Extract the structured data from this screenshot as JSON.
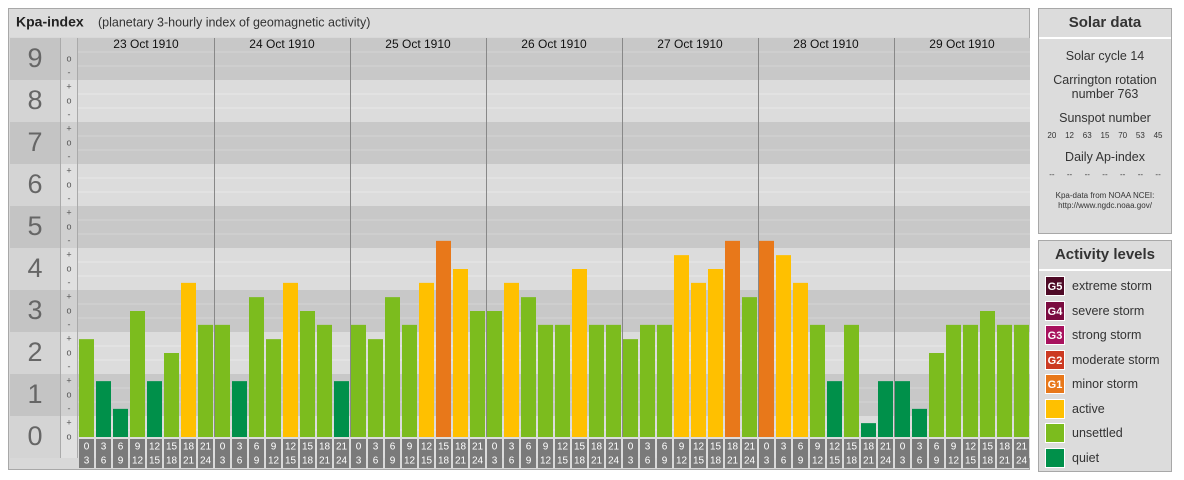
{
  "chart_data": {
    "type": "bar",
    "title": "Kpa-index",
    "subtitle": "(planetary 3-hourly index of geomagnetic activity)",
    "ylim": [
      -0.5,
      9.5
    ],
    "yticks": [
      0,
      1,
      2,
      3,
      4,
      5,
      6,
      7,
      8,
      9
    ],
    "minor_tick_labels": [
      "-",
      "o",
      "+"
    ],
    "hours": [
      [
        0,
        3
      ],
      [
        3,
        6
      ],
      [
        6,
        9
      ],
      [
        9,
        12
      ],
      [
        12,
        15
      ],
      [
        15,
        18
      ],
      [
        18,
        21
      ],
      [
        21,
        24
      ]
    ],
    "days": [
      {
        "date": "23 Oct 1910",
        "values": [
          2.33,
          1.33,
          0.67,
          3.0,
          1.33,
          2.0,
          3.67,
          2.67
        ],
        "colors": [
          "#7cbc1e",
          "#00904a",
          "#00904a",
          "#7cbc1e",
          "#00904a",
          "#7cbc1e",
          "#ffc000",
          "#7cbc1e"
        ]
      },
      {
        "date": "24 Oct 1910",
        "values": [
          2.67,
          1.33,
          3.33,
          2.33,
          3.67,
          3.0,
          2.67,
          1.33
        ],
        "colors": [
          "#7cbc1e",
          "#00904a",
          "#7cbc1e",
          "#7cbc1e",
          "#ffc000",
          "#7cbc1e",
          "#7cbc1e",
          "#00904a"
        ]
      },
      {
        "date": "25 Oct 1910",
        "values": [
          2.67,
          2.33,
          3.33,
          2.67,
          3.67,
          4.67,
          4.0,
          3.0
        ],
        "colors": [
          "#7cbc1e",
          "#7cbc1e",
          "#7cbc1e",
          "#7cbc1e",
          "#ffc000",
          "#e8781a",
          "#ffc000",
          "#7cbc1e"
        ]
      },
      {
        "date": "26 Oct 1910",
        "values": [
          3.0,
          3.67,
          3.33,
          2.67,
          2.67,
          4.0,
          2.67,
          2.67
        ],
        "colors": [
          "#7cbc1e",
          "#ffc000",
          "#7cbc1e",
          "#7cbc1e",
          "#7cbc1e",
          "#ffc000",
          "#7cbc1e",
          "#7cbc1e"
        ]
      },
      {
        "date": "27 Oct 1910",
        "values": [
          2.33,
          2.67,
          2.67,
          4.33,
          3.67,
          4.0,
          4.67,
          3.33
        ],
        "colors": [
          "#7cbc1e",
          "#7cbc1e",
          "#7cbc1e",
          "#ffc000",
          "#ffc000",
          "#ffc000",
          "#e8781a",
          "#7cbc1e"
        ]
      },
      {
        "date": "28 Oct 1910",
        "values": [
          4.67,
          4.33,
          3.67,
          2.67,
          1.33,
          2.67,
          0.33,
          1.33
        ],
        "colors": [
          "#e8781a",
          "#ffc000",
          "#ffc000",
          "#7cbc1e",
          "#00904a",
          "#7cbc1e",
          "#00904a",
          "#00904a"
        ]
      },
      {
        "date": "29 Oct 1910",
        "values": [
          1.33,
          0.67,
          2.0,
          2.67,
          2.67,
          3.0,
          2.67,
          2.67
        ],
        "colors": [
          "#00904a",
          "#00904a",
          "#7cbc1e",
          "#7cbc1e",
          "#7cbc1e",
          "#7cbc1e",
          "#7cbc1e",
          "#7cbc1e"
        ]
      }
    ]
  },
  "solar_data": {
    "title": "Solar data",
    "cycle": "Solar cycle 14",
    "carrington": "Carrington rotation number 763",
    "sunspot_label": "Sunspot number",
    "sunspot": [
      20,
      12,
      63,
      15,
      70,
      53,
      45
    ],
    "ap_label": "Daily Ap-index",
    "ap": [
      "--",
      "--",
      "--",
      "--",
      "--",
      "--",
      "--"
    ],
    "source": "Kpa-data from NOAA NCEI:",
    "url": "http://www.ngdc.noaa.gov/"
  },
  "activity_levels": {
    "title": "Activity levels",
    "items": [
      {
        "badge": "G5",
        "label": "extreme storm",
        "color": "#4e0a26"
      },
      {
        "badge": "G4",
        "label": "severe storm",
        "color": "#7a0c40"
      },
      {
        "badge": "G3",
        "label": "strong storm",
        "color": "#a8125e"
      },
      {
        "badge": "G2",
        "label": "moderate storm",
        "color": "#cc3a22"
      },
      {
        "badge": "G1",
        "label": "minor storm",
        "color": "#e8781a"
      },
      {
        "label": "active",
        "color": "#ffc000"
      },
      {
        "label": "unsettled",
        "color": "#7cbc1e"
      },
      {
        "label": "quiet",
        "color": "#00904a"
      }
    ]
  }
}
